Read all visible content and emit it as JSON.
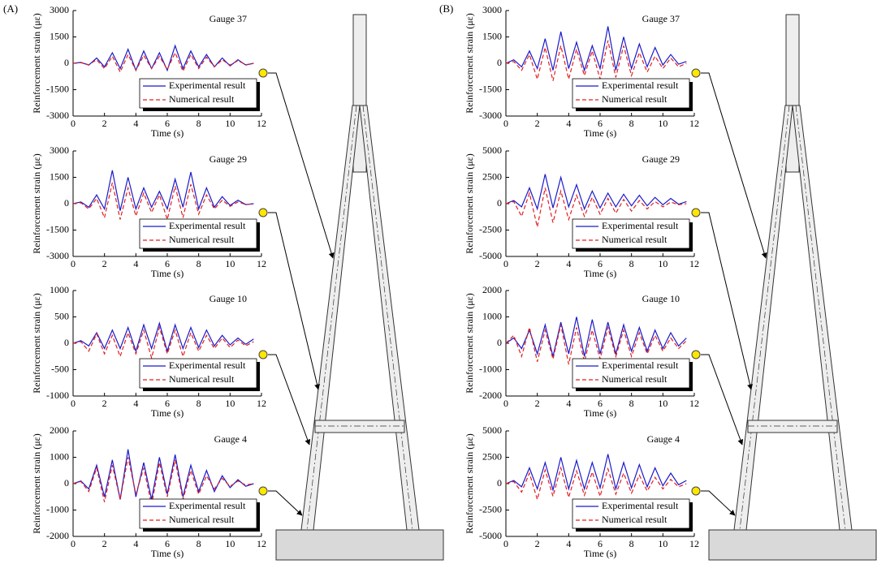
{
  "panel_labels": [
    "(A)",
    "(B)"
  ],
  "chart_data": [
    {
      "type": "line",
      "title": "Gauge 37",
      "x_label": "Time (s)",
      "y_label": "Reinforcement strain (με)",
      "legend": "lower right",
      "x": [
        0,
        0.5,
        1,
        1.5,
        2,
        2.5,
        3,
        3.5,
        4,
        4.5,
        5,
        5.5,
        6,
        6.5,
        7,
        7.5,
        8,
        8.5,
        9,
        9.5,
        10,
        10.5,
        11,
        11.5
      ],
      "xlim": [
        0,
        12
      ],
      "xticks": [
        0,
        2,
        4,
        6,
        8,
        10,
        12
      ],
      "ylim": [
        -3000,
        3000
      ],
      "yticks": [
        3000,
        1500,
        0,
        -1500,
        -3000
      ],
      "series": [
        {
          "name": "Experimental result",
          "color": "#1a1acc",
          "style": "solid",
          "values": [
            0,
            50,
            -100,
            300,
            -200,
            600,
            -300,
            800,
            -400,
            700,
            -300,
            600,
            -400,
            1000,
            -300,
            700,
            -200,
            500,
            -200,
            300,
            -150,
            200,
            -100,
            0
          ]
        },
        {
          "name": "Numerical result",
          "color": "#e02020",
          "style": "dashed",
          "values": [
            0,
            30,
            -80,
            200,
            -300,
            400,
            -500,
            500,
            -400,
            450,
            -300,
            400,
            -350,
            600,
            -450,
            500,
            -300,
            350,
            -200,
            200,
            -100,
            150,
            -80,
            0
          ]
        }
      ]
    },
    {
      "type": "line",
      "title": "Gauge 29",
      "x_label": "Time (s)",
      "y_label": "Reinforcement strain (με)",
      "legend": "lower right",
      "x": [
        0,
        0.5,
        1,
        1.5,
        2,
        2.5,
        3,
        3.5,
        4,
        4.5,
        5,
        5.5,
        6,
        6.5,
        7,
        7.5,
        8,
        8.5,
        9,
        9.5,
        10,
        10.5,
        11,
        11.5
      ],
      "xlim": [
        0,
        12
      ],
      "xticks": [
        0,
        2,
        4,
        6,
        8,
        10,
        12
      ],
      "ylim": [
        -3000,
        3000
      ],
      "yticks": [
        3000,
        1500,
        0,
        -1500,
        -3000
      ],
      "series": [
        {
          "name": "Experimental result",
          "color": "#1a1acc",
          "style": "solid",
          "values": [
            0,
            100,
            -200,
            500,
            -300,
            1900,
            -400,
            1500,
            -300,
            900,
            -200,
            700,
            -300,
            1400,
            -200,
            1800,
            -300,
            900,
            -200,
            400,
            -100,
            200,
            -50,
            0
          ]
        },
        {
          "name": "Numerical result",
          "color": "#e02020",
          "style": "dashed",
          "values": [
            0,
            50,
            -300,
            300,
            -800,
            1200,
            -900,
            900,
            -700,
            600,
            -500,
            500,
            -900,
            1000,
            -800,
            1100,
            -600,
            500,
            -300,
            200,
            -150,
            100,
            -50,
            0
          ]
        }
      ]
    },
    {
      "type": "line",
      "title": "Gauge 10",
      "x_label": "Time (s)",
      "y_label": "Reinforcement strain (με)",
      "legend": "lower right",
      "x": [
        0,
        0.5,
        1,
        1.5,
        2,
        2.5,
        3,
        3.5,
        4,
        4.5,
        5,
        5.5,
        6,
        6.5,
        7,
        7.5,
        8,
        8.5,
        9,
        9.5,
        10,
        10.5,
        11,
        11.5
      ],
      "xlim": [
        0,
        12
      ],
      "xticks": [
        0,
        2,
        4,
        6,
        8,
        10,
        12
      ],
      "ylim": [
        -1000,
        1000
      ],
      "yticks": [
        1000,
        500,
        0,
        -500,
        -1000
      ],
      "series": [
        {
          "name": "Experimental result",
          "color": "#1a1acc",
          "style": "solid",
          "values": [
            0,
            50,
            -50,
            200,
            -100,
            250,
            -100,
            300,
            -150,
            350,
            -100,
            380,
            -150,
            350,
            -100,
            300,
            -80,
            250,
            -50,
            150,
            -30,
            100,
            -20,
            80
          ]
        },
        {
          "name": "Numerical result",
          "color": "#e02020",
          "style": "dashed",
          "values": [
            0,
            30,
            -150,
            180,
            -200,
            150,
            -250,
            200,
            -200,
            250,
            -280,
            300,
            -200,
            250,
            -250,
            200,
            -150,
            150,
            -100,
            100,
            -80,
            60,
            -50,
            30
          ]
        }
      ]
    },
    {
      "type": "line",
      "title": "Gauge 4",
      "x_label": "Time (s)",
      "y_label": "Reinforcement strain (με)",
      "legend": "lower right",
      "x": [
        0,
        0.5,
        1,
        1.5,
        2,
        2.5,
        3,
        3.5,
        4,
        4.5,
        5,
        5.5,
        6,
        6.5,
        7,
        7.5,
        8,
        8.5,
        9,
        9.5,
        10,
        10.5,
        11,
        11.5
      ],
      "xlim": [
        0,
        12
      ],
      "xticks": [
        0,
        2,
        4,
        6,
        8,
        10,
        12
      ],
      "ylim": [
        -2000,
        2000
      ],
      "yticks": [
        2000,
        1000,
        0,
        -1000,
        -2000
      ],
      "series": [
        {
          "name": "Experimental result",
          "color": "#1a1acc",
          "style": "solid",
          "values": [
            0,
            100,
            -200,
            700,
            -500,
            900,
            -600,
            1300,
            -500,
            800,
            -600,
            1000,
            -400,
            1100,
            -500,
            700,
            -300,
            500,
            -300,
            300,
            -150,
            150,
            -100,
            0
          ]
        },
        {
          "name": "Numerical result",
          "color": "#e02020",
          "style": "dashed",
          "values": [
            0,
            80,
            -300,
            600,
            -700,
            700,
            -600,
            1000,
            -400,
            600,
            -800,
            800,
            -500,
            900,
            -600,
            500,
            -400,
            300,
            -200,
            200,
            -100,
            100,
            -50,
            0
          ]
        }
      ]
    },
    {
      "type": "line",
      "title": "Gauge 37",
      "x_label": "Time (s)",
      "y_label": "Reinforcement strain (με)",
      "legend": "lower right",
      "x": [
        0,
        0.5,
        1,
        1.5,
        2,
        2.5,
        3,
        3.5,
        4,
        4.5,
        5,
        5.5,
        6,
        6.5,
        7,
        7.5,
        8,
        8.5,
        9,
        9.5,
        10,
        10.5,
        11,
        11.5
      ],
      "xlim": [
        0,
        12
      ],
      "xticks": [
        0,
        2,
        4,
        6,
        8,
        10,
        12
      ],
      "ylim": [
        -3000,
        3000
      ],
      "yticks": [
        3000,
        1500,
        0,
        -1500,
        -3000
      ],
      "series": [
        {
          "name": "Experimental result",
          "color": "#1a1acc",
          "style": "solid",
          "values": [
            0,
            200,
            -200,
            700,
            -300,
            1400,
            -400,
            1800,
            -300,
            1200,
            -400,
            1000,
            -300,
            2100,
            -400,
            1500,
            -300,
            1100,
            -200,
            900,
            -100,
            500,
            -50,
            100
          ]
        },
        {
          "name": "Numerical result",
          "color": "#e02020",
          "style": "dashed",
          "values": [
            0,
            100,
            -400,
            500,
            -900,
            900,
            -1000,
            1000,
            -900,
            800,
            -700,
            700,
            -900,
            1300,
            -800,
            1000,
            -700,
            600,
            -500,
            400,
            -300,
            300,
            -200,
            0
          ]
        }
      ]
    },
    {
      "type": "line",
      "title": "Gauge 29",
      "x_label": "Time (s)",
      "y_label": "Reinforcement strain (με)",
      "legend": "lower right",
      "x": [
        0,
        0.5,
        1,
        1.5,
        2,
        2.5,
        3,
        3.5,
        4,
        4.5,
        5,
        5.5,
        6,
        6.5,
        7,
        7.5,
        8,
        8.5,
        9,
        9.5,
        10,
        10.5,
        11,
        11.5
      ],
      "xlim": [
        0,
        12
      ],
      "xticks": [
        0,
        2,
        4,
        6,
        8,
        10,
        12
      ],
      "ylim": [
        -5000,
        5000
      ],
      "yticks": [
        5000,
        2500,
        0,
        -2500,
        -5000
      ],
      "series": [
        {
          "name": "Experimental result",
          "color": "#1a1acc",
          "style": "solid",
          "values": [
            0,
            300,
            -300,
            1500,
            -500,
            2800,
            -400,
            2500,
            -300,
            1800,
            -500,
            1200,
            -400,
            1000,
            -300,
            900,
            -200,
            800,
            -200,
            600,
            -100,
            500,
            -50,
            200
          ]
        },
        {
          "name": "Numerical result",
          "color": "#e02020",
          "style": "dashed",
          "values": [
            0,
            200,
            -1200,
            1000,
            -2200,
            1500,
            -1800,
            1200,
            -1500,
            800,
            -1200,
            600,
            -1000,
            500,
            -900,
            400,
            -700,
            300,
            -500,
            200,
            -300,
            150,
            -100,
            0
          ]
        }
      ]
    },
    {
      "type": "line",
      "title": "Gauge 10",
      "x_label": "Time (s)",
      "y_label": "Reinforcement strain (με)",
      "legend": "lower right",
      "x": [
        0,
        0.5,
        1,
        1.5,
        2,
        2.5,
        3,
        3.5,
        4,
        4.5,
        5,
        5.5,
        6,
        6.5,
        7,
        7.5,
        8,
        8.5,
        9,
        9.5,
        10,
        10.5,
        11,
        11.5
      ],
      "xlim": [
        0,
        12
      ],
      "xticks": [
        0,
        2,
        4,
        6,
        8,
        10,
        12
      ],
      "ylim": [
        -2000,
        2000
      ],
      "yticks": [
        2000,
        1000,
        0,
        -1000,
        -2000
      ],
      "series": [
        {
          "name": "Experimental result",
          "color": "#1a1acc",
          "style": "solid",
          "values": [
            0,
            200,
            -200,
            500,
            -400,
            700,
            -500,
            800,
            -400,
            1000,
            -500,
            900,
            -400,
            800,
            -400,
            700,
            -300,
            600,
            -300,
            500,
            -200,
            400,
            -100,
            200
          ]
        },
        {
          "name": "Numerical result",
          "color": "#e02020",
          "style": "dashed",
          "values": [
            0,
            300,
            -500,
            600,
            -700,
            500,
            -600,
            700,
            -800,
            600,
            -700,
            500,
            -600,
            600,
            -500,
            500,
            -500,
            400,
            -400,
            300,
            -300,
            200,
            -200,
            100
          ]
        }
      ]
    },
    {
      "type": "line",
      "title": "Gauge 4",
      "x_label": "Time (s)",
      "y_label": "Reinforcement strain (με)",
      "legend": "lower right",
      "x": [
        0,
        0.5,
        1,
        1.5,
        2,
        2.5,
        3,
        3.5,
        4,
        4.5,
        5,
        5.5,
        6,
        6.5,
        7,
        7.5,
        8,
        8.5,
        9,
        9.5,
        10,
        10.5,
        11,
        11.5
      ],
      "xlim": [
        0,
        12
      ],
      "xticks": [
        0,
        2,
        4,
        6,
        8,
        10,
        12
      ],
      "ylim": [
        -5000,
        5000
      ],
      "yticks": [
        5000,
        2500,
        0,
        -2500,
        -5000
      ],
      "series": [
        {
          "name": "Experimental result",
          "color": "#1a1acc",
          "style": "solid",
          "values": [
            0,
            300,
            -300,
            1500,
            -500,
            2000,
            -600,
            2500,
            -500,
            2200,
            -500,
            2000,
            -400,
            2800,
            -500,
            2000,
            -400,
            1800,
            -300,
            1500,
            -200,
            1000,
            -100,
            300
          ]
        },
        {
          "name": "Numerical result",
          "color": "#e02020",
          "style": "dashed",
          "values": [
            0,
            200,
            -800,
            1000,
            -1500,
            1300,
            -1200,
            1500,
            -1300,
            1200,
            -1100,
            1100,
            -1200,
            1400,
            -1000,
            1000,
            -900,
            800,
            -700,
            600,
            -500,
            400,
            -300,
            0
          ]
        }
      ]
    }
  ]
}
